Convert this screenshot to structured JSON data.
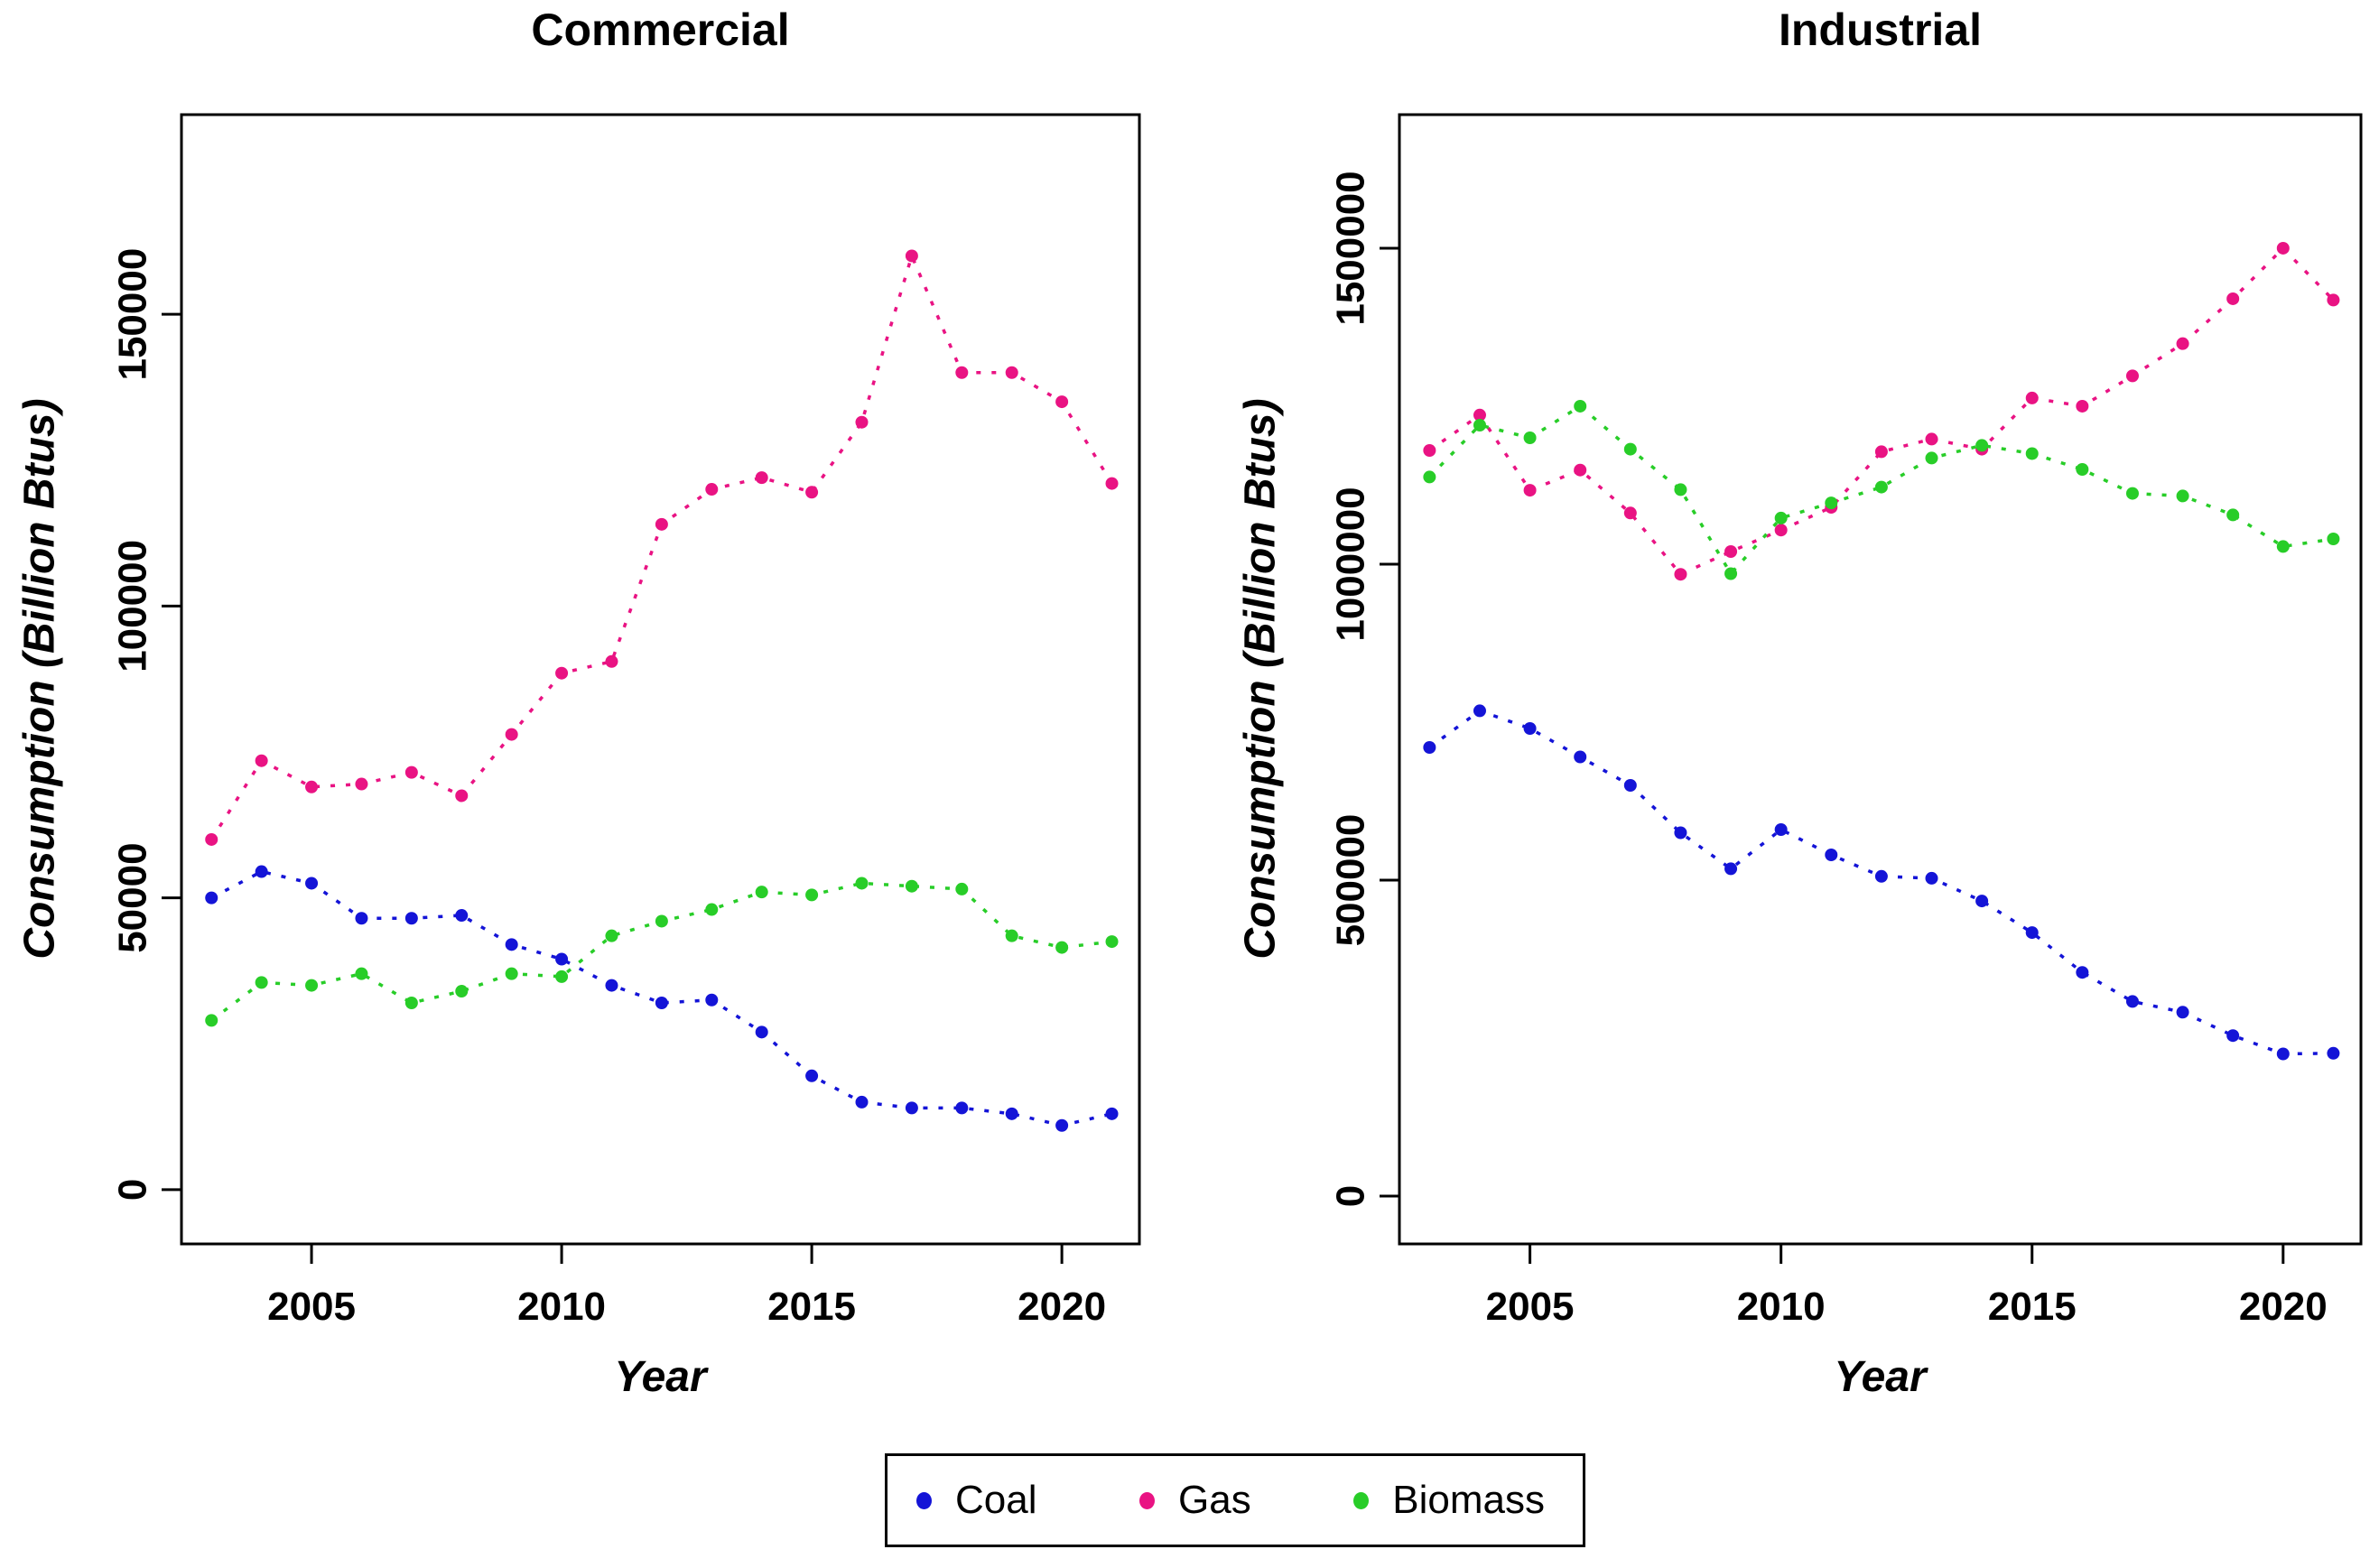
{
  "figure_titles": {
    "left": "Commercial",
    "right": "Industrial"
  },
  "legend": {
    "items": [
      {
        "label": "Coal",
        "color": "#1414d7"
      },
      {
        "label": "Gas",
        "color": "#e91383"
      },
      {
        "label": "Biomass",
        "color": "#28cd28"
      }
    ]
  },
  "chart_data": [
    {
      "type": "line",
      "title": "Commercial",
      "xlabel": "Year",
      "ylabel": "Consumption (Billion Btus)",
      "line_style": "dotted",
      "marker": "circle",
      "grid": false,
      "legend_position": "bottom-outside",
      "x": [
        2003,
        2004,
        2005,
        2006,
        2007,
        2008,
        2009,
        2010,
        2011,
        2012,
        2013,
        2014,
        2015,
        2016,
        2017,
        2018,
        2019,
        2020,
        2021
      ],
      "xticks": [
        2005,
        2010,
        2015,
        2020
      ],
      "yticks": [
        0,
        50000,
        100000,
        150000
      ],
      "xlim": [
        2002.4,
        2021.55
      ],
      "ylim": [
        -9300,
        184200
      ],
      "series": [
        {
          "name": "Coal",
          "color": "#1414d7",
          "values": [
            50000,
            54500,
            52500,
            46500,
            46500,
            47000,
            42000,
            39500,
            35000,
            32000,
            32500,
            27000,
            19500,
            15000,
            14000,
            14000,
            13000,
            11000,
            13000
          ]
        },
        {
          "name": "Gas",
          "color": "#e91383",
          "values": [
            60000,
            73500,
            69000,
            69500,
            71500,
            67500,
            78000,
            88500,
            90500,
            114000,
            120000,
            122000,
            119500,
            131500,
            160000,
            140000,
            140000,
            135000,
            121000
          ]
        },
        {
          "name": "Biomass",
          "color": "#28cd28",
          "values": [
            29000,
            35500,
            35000,
            37000,
            32000,
            34000,
            37000,
            36500,
            43500,
            46000,
            48000,
            51000,
            50500,
            52500,
            52000,
            51500,
            43500,
            41500,
            42500
          ]
        }
      ]
    },
    {
      "type": "line",
      "title": "Industrial",
      "xlabel": "Year",
      "ylabel": "Consumption (Billion Btus)",
      "line_style": "dotted",
      "marker": "circle",
      "grid": false,
      "legend_position": "bottom-outside",
      "x": [
        2003,
        2004,
        2005,
        2006,
        2007,
        2008,
        2009,
        2010,
        2011,
        2012,
        2013,
        2014,
        2015,
        2016,
        2017,
        2018,
        2019,
        2020,
        2021
      ],
      "xticks": [
        2005,
        2010,
        2015,
        2020
      ],
      "yticks": [
        0,
        500000,
        1000000,
        1500000
      ],
      "xlim": [
        2002.4,
        2021.55
      ],
      "ylim": [
        -75700,
        1711400
      ],
      "series": [
        {
          "name": "Coal",
          "color": "#1414d7",
          "values": [
            710000,
            768000,
            740000,
            695000,
            650000,
            575000,
            518000,
            580000,
            540000,
            506000,
            503000,
            467000,
            417000,
            354000,
            308000,
            291000,
            254000,
            225000,
            226000
          ]
        },
        {
          "name": "Gas",
          "color": "#e91383",
          "values": [
            1180000,
            1236000,
            1117000,
            1149000,
            1081000,
            984000,
            1020000,
            1054000,
            1090000,
            1178000,
            1198000,
            1182000,
            1263000,
            1250000,
            1298000,
            1349000,
            1420000,
            1500000,
            1418000
          ]
        },
        {
          "name": "Biomass",
          "color": "#28cd28",
          "values": [
            1138000,
            1220000,
            1200000,
            1250000,
            1182000,
            1118000,
            985000,
            1073000,
            1097000,
            1122000,
            1168000,
            1188000,
            1175000,
            1150000,
            1112000,
            1108000,
            1078000,
            1028000,
            1040000
          ]
        }
      ]
    }
  ]
}
